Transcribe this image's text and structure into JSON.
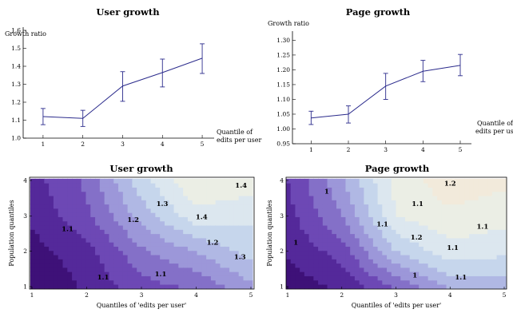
{
  "colors": {
    "line": "#2b2b8c",
    "palette": [
      "#3e1178",
      "#54299a",
      "#6d48b5",
      "#8470c8",
      "#9c97d9",
      "#b0b8e4",
      "#c6d6ec",
      "#dce7ef",
      "#ebeee5",
      "#f2eadb"
    ]
  },
  "chart_data": [
    {
      "type": "line",
      "title": "User growth",
      "ylabel": "Growth ratio",
      "xlabel": [
        "Quantile of",
        "edits per user"
      ],
      "x": [
        1,
        2,
        3,
        4,
        5
      ],
      "values": [
        1.12,
        1.11,
        1.29,
        1.365,
        1.445
      ],
      "err_low": [
        1.075,
        1.065,
        1.205,
        1.285,
        1.36
      ],
      "err_high": [
        1.165,
        1.155,
        1.37,
        1.44,
        1.525
      ],
      "xlim": [
        0.5,
        5.3
      ],
      "ylim": [
        1.0,
        1.6
      ],
      "xticks": [
        1,
        2,
        3,
        4,
        5
      ],
      "yticks": [
        "1.0",
        "1.1",
        "1.2",
        "1.3",
        "1.4",
        "1.5",
        "1.6"
      ]
    },
    {
      "type": "line",
      "title": "Page growth",
      "ylabel": "Growth ratio",
      "xlabel": [
        "Quantile of",
        "edits per user"
      ],
      "x": [
        1,
        2,
        3,
        4,
        5
      ],
      "values": [
        1.037,
        1.05,
        1.145,
        1.195,
        1.215
      ],
      "err_low": [
        1.015,
        1.02,
        1.1,
        1.16,
        1.18
      ],
      "err_high": [
        1.06,
        1.078,
        1.188,
        1.232,
        1.252
      ],
      "xlim": [
        0.5,
        5.3
      ],
      "ylim": [
        0.95,
        1.32
      ],
      "xticks": [
        1,
        2,
        3,
        4,
        5
      ],
      "yticks": [
        "0.95",
        "1.00",
        "1.05",
        "1.10",
        "1.15",
        "1.20",
        "1.25",
        "1.30"
      ]
    },
    {
      "type": "heatmap",
      "title": "User growth",
      "xlabel": "Quantiles of 'edits per user'",
      "ylabel": "Population quantiles",
      "xticks": [
        1,
        2,
        3,
        4,
        5
      ],
      "yticks": [
        1,
        2,
        3,
        4
      ],
      "x": [
        1,
        2,
        3,
        4,
        5
      ],
      "y": [
        1,
        2,
        3,
        4
      ],
      "z": [
        [
          1.0,
          1.06,
          1.13,
          1.16,
          1.24
        ],
        [
          1.03,
          1.08,
          1.19,
          1.25,
          1.32
        ],
        [
          1.06,
          1.14,
          1.27,
          1.38,
          1.36
        ],
        [
          1.08,
          1.16,
          1.33,
          1.45,
          1.43
        ]
      ],
      "contour_labels": [
        {
          "text": "1.1",
          "x": 1.65,
          "y": 2.63
        },
        {
          "text": "1.1",
          "x": 2.3,
          "y": 1.27
        },
        {
          "text": "1.1",
          "x": 3.35,
          "y": 1.36
        },
        {
          "text": "1.2",
          "x": 2.85,
          "y": 2.9
        },
        {
          "text": "1.2",
          "x": 4.3,
          "y": 2.25
        },
        {
          "text": "1.3",
          "x": 3.38,
          "y": 3.35
        },
        {
          "text": "1.3",
          "x": 4.8,
          "y": 1.85
        },
        {
          "text": "1.4",
          "x": 4.1,
          "y": 2.97
        },
        {
          "text": "1.4",
          "x": 4.82,
          "y": 3.87
        }
      ]
    },
    {
      "type": "heatmap",
      "title": "Page growth",
      "xlabel": "Quantiles of 'edits per user'",
      "ylabel": "Population quantiles",
      "xticks": [
        1,
        2,
        3,
        4,
        5
      ],
      "yticks": [
        1,
        2,
        3,
        4
      ],
      "x": [
        1,
        2,
        3,
        4,
        5
      ],
      "y": [
        1,
        2,
        3,
        4
      ],
      "z": [
        [
          0.98,
          1.0,
          1.05,
          1.1,
          1.11
        ],
        [
          1.0,
          1.03,
          1.12,
          1.16,
          1.15
        ],
        [
          1.01,
          1.07,
          1.17,
          1.19,
          1.18
        ],
        [
          1.02,
          1.09,
          1.18,
          1.21,
          1.2
        ]
      ],
      "contour_labels": [
        {
          "text": "1",
          "x": 1.72,
          "y": 3.7
        },
        {
          "text": "1",
          "x": 1.15,
          "y": 2.25
        },
        {
          "text": "1",
          "x": 3.35,
          "y": 1.33
        },
        {
          "text": "1.1",
          "x": 3.4,
          "y": 3.35
        },
        {
          "text": "1.1",
          "x": 2.75,
          "y": 2.77
        },
        {
          "text": "1.1",
          "x": 4.6,
          "y": 2.7
        },
        {
          "text": "1.1",
          "x": 4.05,
          "y": 2.1
        },
        {
          "text": "1.1",
          "x": 4.2,
          "y": 1.27
        },
        {
          "text": "1.2",
          "x": 3.38,
          "y": 2.4
        },
        {
          "text": "1.2",
          "x": 4.0,
          "y": 3.92
        }
      ]
    }
  ]
}
